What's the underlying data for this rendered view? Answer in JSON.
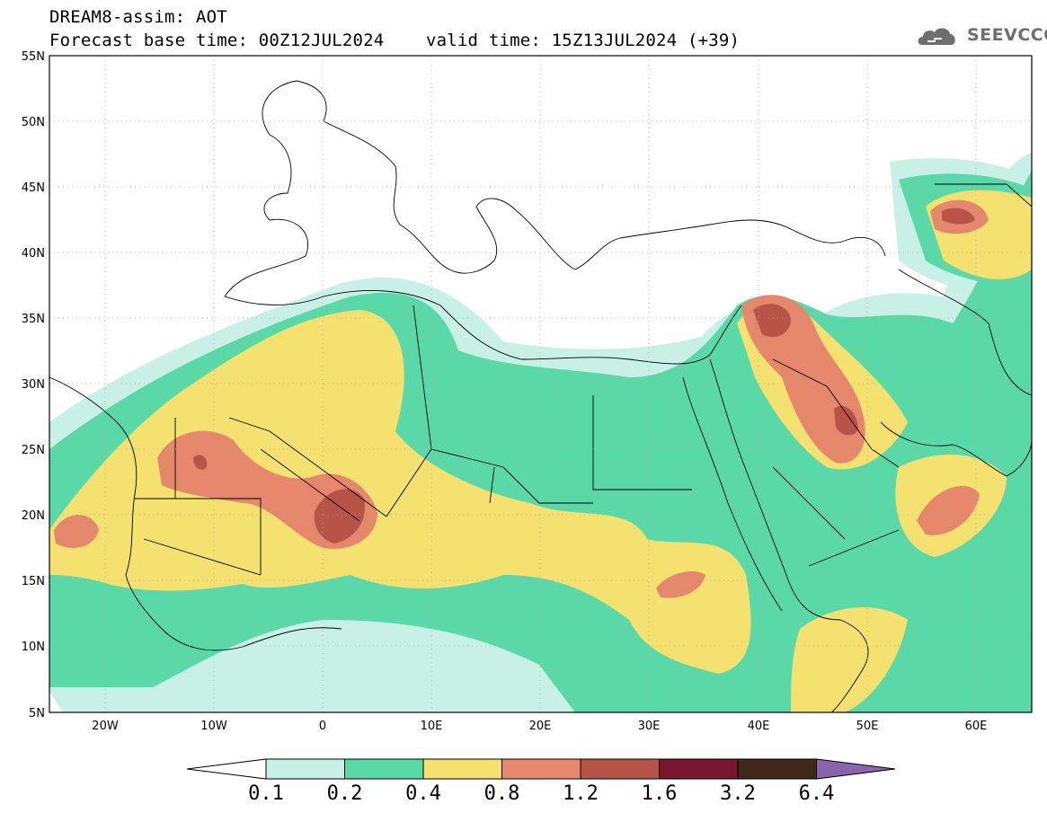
{
  "title": {
    "line1": "DREAM8-assim: AOT",
    "line2": "Forecast base time: 00Z12JUL2024    valid time: 15Z13JUL2024 (+39)"
  },
  "logo": {
    "text": "SEEVCCC",
    "icon": "cloud-icon"
  },
  "axes": {
    "lon_labels": [
      "20W",
      "10W",
      "0",
      "10E",
      "20E",
      "30E",
      "40E",
      "50E",
      "60E"
    ],
    "lon_values": [
      -20,
      -10,
      0,
      10,
      20,
      30,
      40,
      50,
      60
    ],
    "lat_labels": [
      "55N",
      "50N",
      "45N",
      "40N",
      "35N",
      "30N",
      "25N",
      "20N",
      "15N",
      "10N",
      "5N"
    ],
    "lat_values": [
      55,
      50,
      45,
      40,
      35,
      30,
      25,
      20,
      15,
      10,
      5
    ],
    "lon_range": [
      -25,
      65
    ],
    "lat_range": [
      5,
      55
    ]
  },
  "colorbar": {
    "labels": [
      "0.1",
      "0.2",
      "0.4",
      "0.8",
      "1.2",
      "1.6",
      "3.2",
      "6.4"
    ],
    "colors": [
      "#c8f0e6",
      "#5ad8a8",
      "#f5e170",
      "#e4876a",
      "#b85348",
      "#7a1530",
      "#40281a"
    ],
    "under_color": "#ffffff",
    "over_color": "#8a63ad"
  },
  "map_colors": {
    "c1": "#c8f0e6",
    "c2": "#5ad8a8",
    "c3": "#f5e170",
    "c4": "#e4876a",
    "c5": "#b85348"
  }
}
